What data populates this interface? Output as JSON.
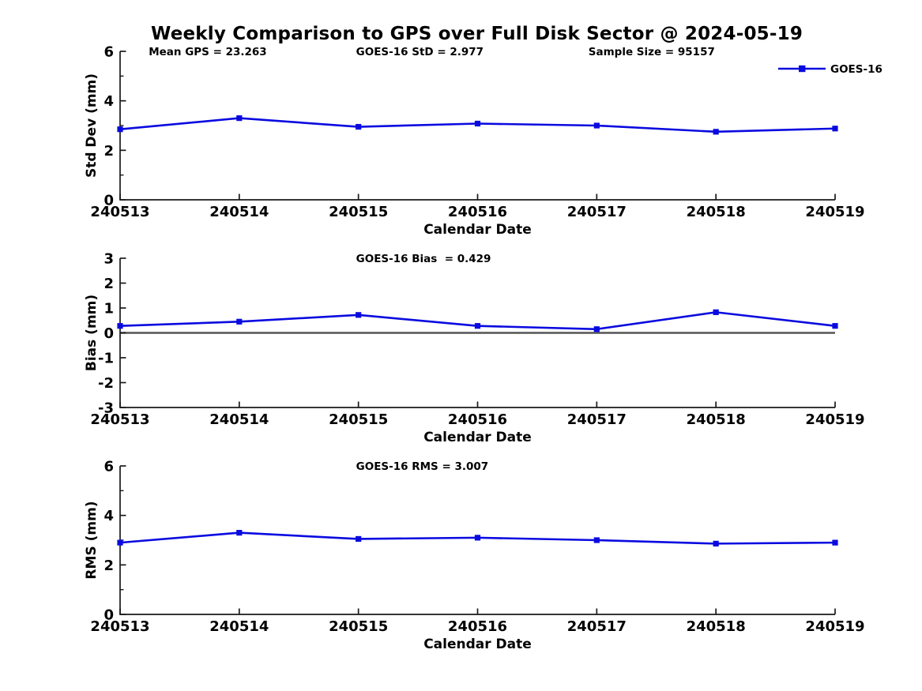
{
  "title": "Weekly Comparison to GPS over Full Disk Sector @ 2024-05-19",
  "colors": {
    "series_blue": "#0a0ae0",
    "axis_black": "#1a1a1a",
    "zero_line_gray": "#555555",
    "text_black": "#000000"
  },
  "chart_data": [
    {
      "id": "stddev",
      "type": "line",
      "x_categories": [
        "240513",
        "240514",
        "240515",
        "240516",
        "240517",
        "240518",
        "240519"
      ],
      "series": [
        {
          "name": "GOES-16",
          "values": [
            2.85,
            3.3,
            2.95,
            3.08,
            3.0,
            2.75,
            2.88
          ]
        }
      ],
      "xlabel": "Calendar Date",
      "ylabel": "Std Dev (mm)",
      "ylim": [
        0,
        6
      ],
      "yticks_major": [
        0,
        2,
        4,
        6
      ],
      "yticks_minor": [
        1,
        3,
        5
      ],
      "grid": false,
      "zero_line": false,
      "annotations": [
        {
          "text": "Mean GPS = 23.263",
          "xfrac": 0.04
        },
        {
          "text": "GOES-16 StD = 2.977",
          "xfrac": 0.33
        },
        {
          "text": "Sample Size = 95157",
          "xfrac": 0.655
        }
      ],
      "legend": {
        "label": "GOES-16",
        "position": "top-right"
      }
    },
    {
      "id": "bias",
      "type": "line",
      "x_categories": [
        "240513",
        "240514",
        "240515",
        "240516",
        "240517",
        "240518",
        "240519"
      ],
      "series": [
        {
          "name": "GOES-16",
          "values": [
            0.28,
            0.45,
            0.72,
            0.28,
            0.15,
            0.83,
            0.28
          ]
        }
      ],
      "xlabel": "Calendar Date",
      "ylabel": "Bias (mm)",
      "ylim": [
        -3,
        3
      ],
      "yticks_major": [
        -3,
        -2,
        -1,
        0,
        1,
        2,
        3
      ],
      "yticks_minor": [],
      "grid": false,
      "zero_line": true,
      "annotations": [
        {
          "text": "GOES-16 Bias  = 0.429",
          "xfrac": 0.33
        }
      ],
      "legend": null
    },
    {
      "id": "rms",
      "type": "line",
      "x_categories": [
        "240513",
        "240514",
        "240515",
        "240516",
        "240517",
        "240518",
        "240519"
      ],
      "series": [
        {
          "name": "GOES-16",
          "values": [
            2.9,
            3.3,
            3.05,
            3.1,
            3.0,
            2.86,
            2.9
          ]
        }
      ],
      "xlabel": "Calendar Date",
      "ylabel": "RMS (mm)",
      "ylim": [
        0,
        6
      ],
      "yticks_major": [
        0,
        2,
        4,
        6
      ],
      "yticks_minor": [
        1,
        3,
        5
      ],
      "grid": false,
      "zero_line": false,
      "annotations": [
        {
          "text": "GOES-16 RMS = 3.007",
          "xfrac": 0.33
        }
      ],
      "legend": null
    }
  ]
}
